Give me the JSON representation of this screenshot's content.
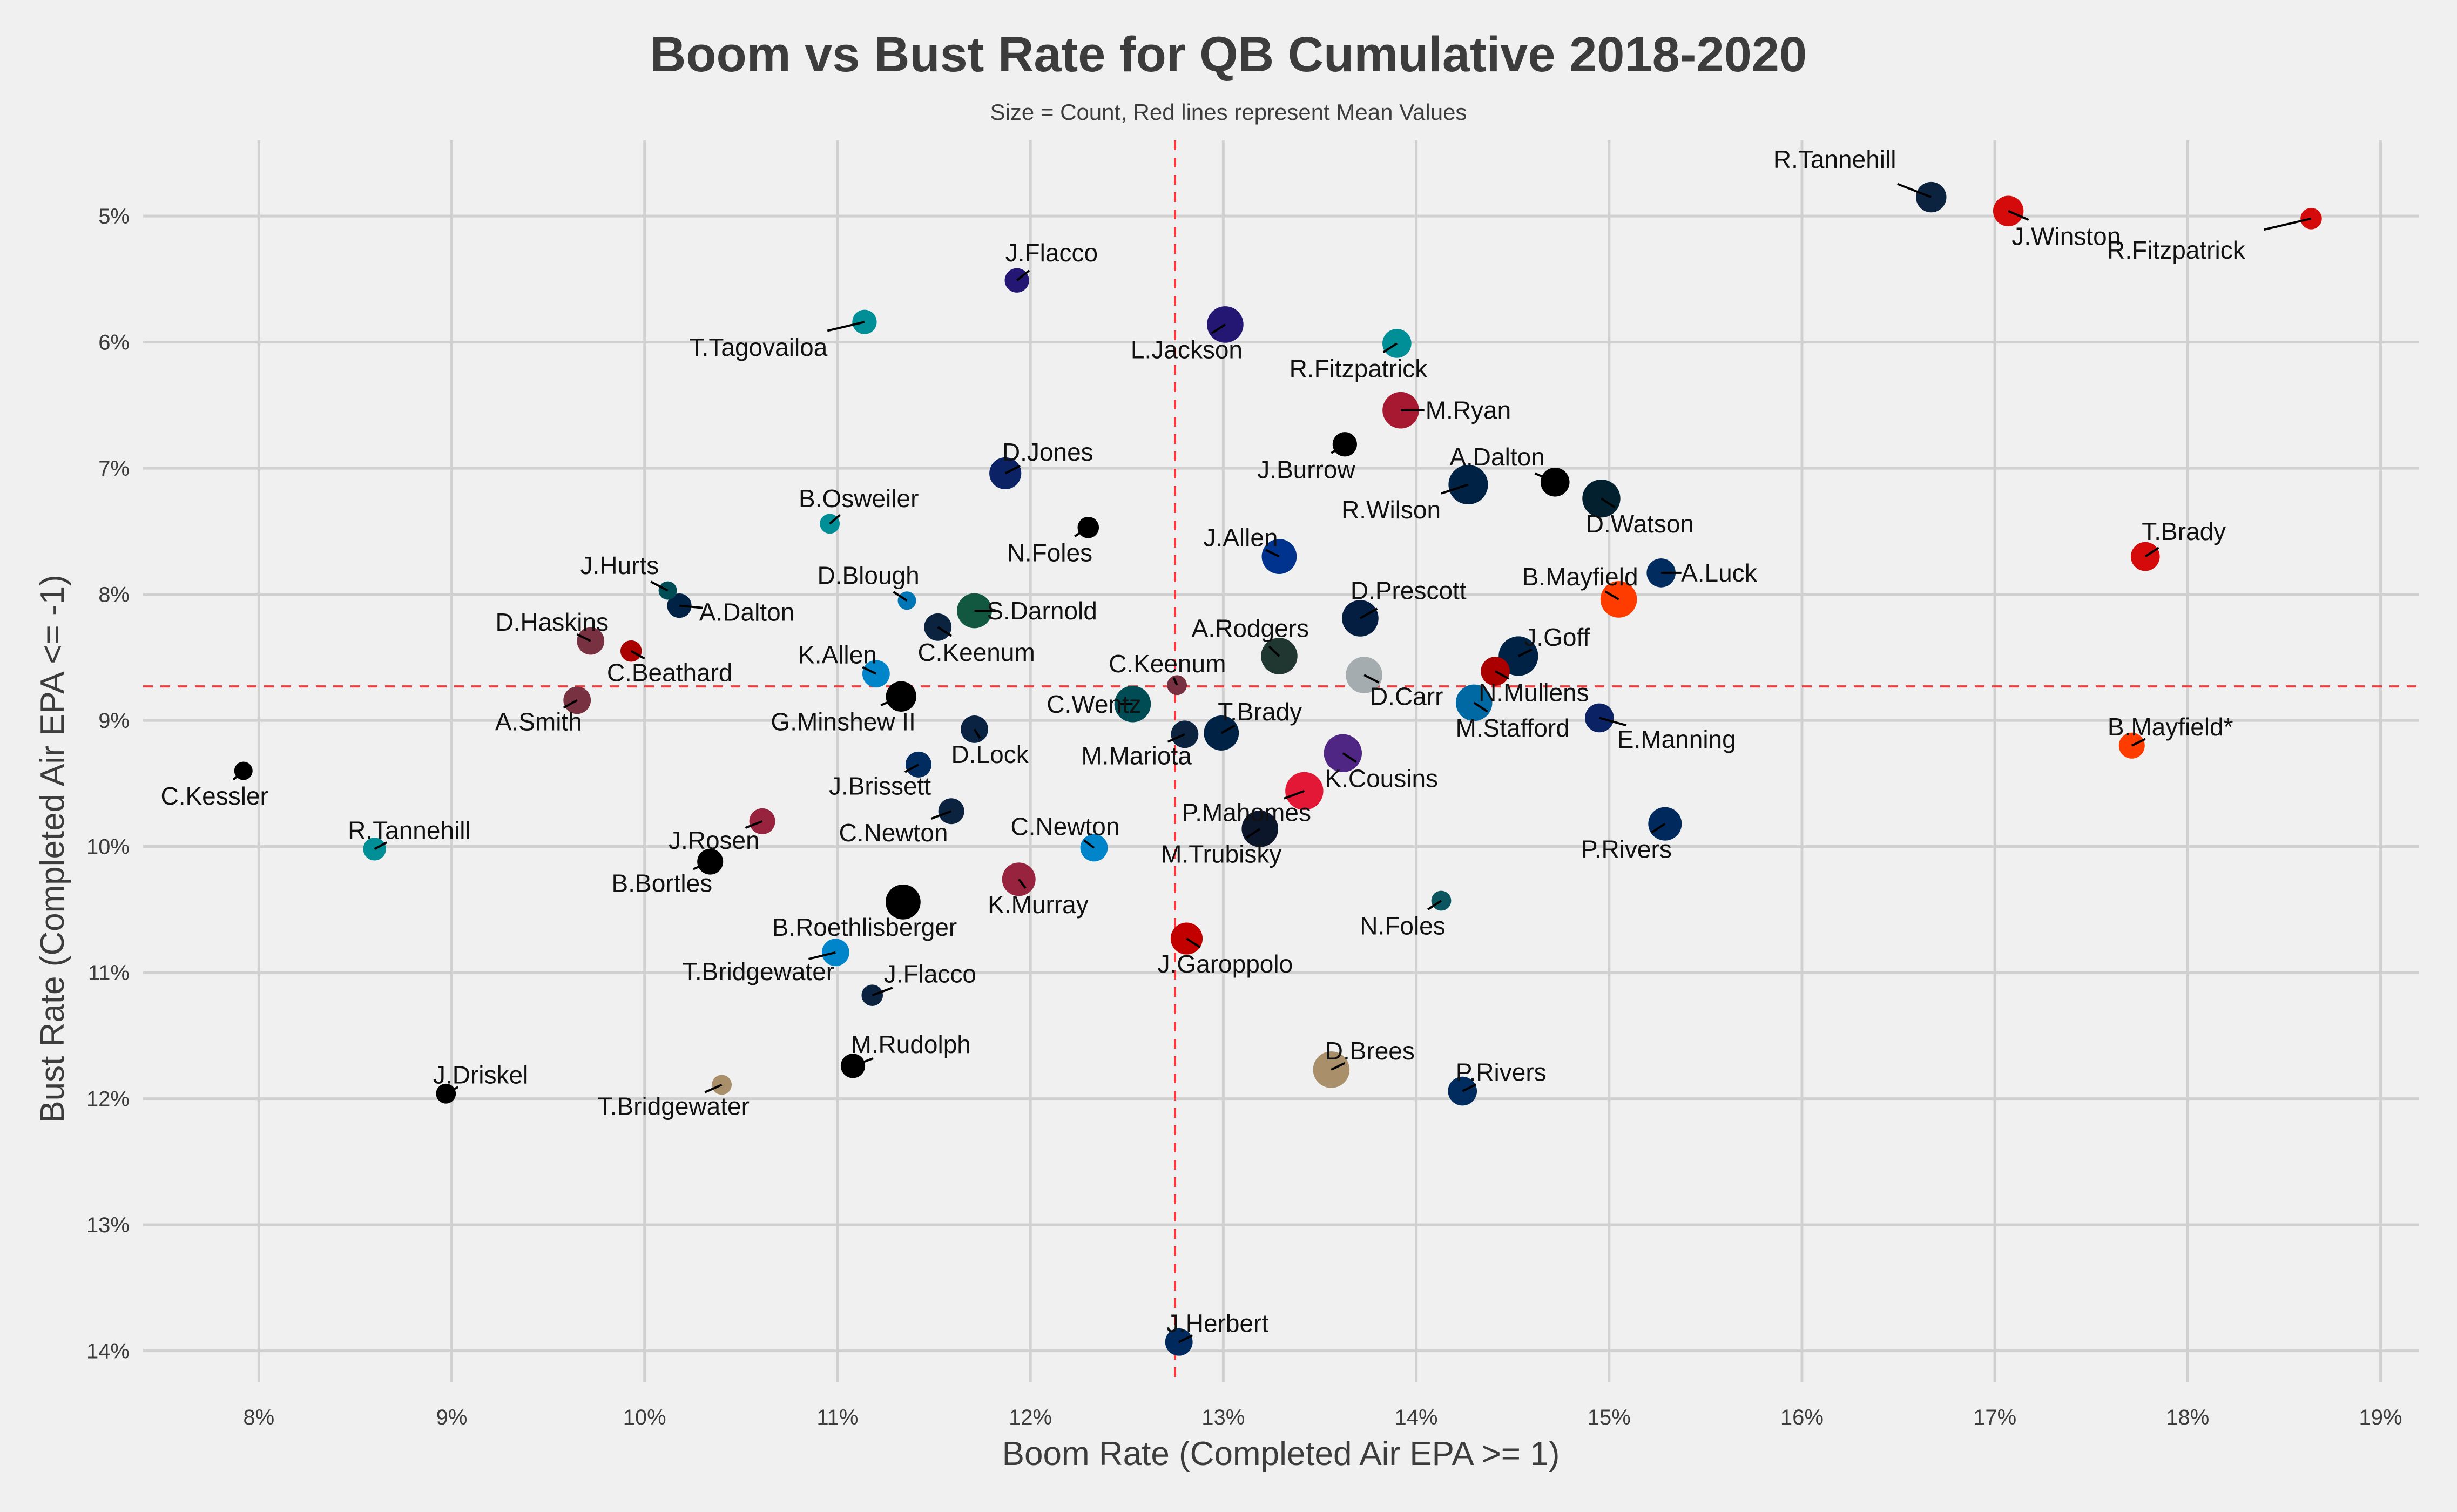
{
  "chart_data": {
    "type": "scatter",
    "title": "Boom vs Bust Rate for QB Cumulative 2018-2020",
    "subtitle": "Size = Count, Red lines represent Mean Values",
    "xlabel": "Boom Rate (Completed Air EPA >= 1)",
    "ylabel": "Bust Rate (Completed Air EPA <= -1)",
    "xlim": [
      7.4,
      19.2
    ],
    "ylim": [
      14.25,
      4.4
    ],
    "y_inverted": true,
    "x_ticks": [
      8,
      9,
      10,
      11,
      12,
      13,
      14,
      15,
      16,
      17,
      18,
      19
    ],
    "y_ticks": [
      5,
      6,
      7,
      8,
      9,
      10,
      11,
      12,
      13,
      14
    ],
    "tick_suffix": "%",
    "grid": true,
    "mean_lines": {
      "x": 12.75,
      "y": 8.73,
      "color": "#f03c3c"
    },
    "points": [
      {
        "name": "R.Tannehill",
        "x": 16.67,
        "y": 4.85,
        "size": 0.65,
        "color": "#0c2340",
        "lx": -0.5,
        "ly": -0.3
      },
      {
        "name": "J.Winston",
        "x": 17.07,
        "y": 4.96,
        "size": 0.65,
        "color": "#d50a0a",
        "lx": 0.3,
        "ly": 0.2
      },
      {
        "name": "R.Fitzpatrick",
        "x": 18.64,
        "y": 5.02,
        "size": 0.35,
        "color": "#d50a0a",
        "lx": -0.7,
        "ly": 0.25
      },
      {
        "name": "J.Flacco",
        "x": 11.93,
        "y": 5.51,
        "size": 0.45,
        "color": "#241773",
        "lx": 0.18,
        "ly": -0.22
      },
      {
        "name": "T.Tagovailoa",
        "x": 11.14,
        "y": 5.84,
        "size": 0.45,
        "color": "#008e97",
        "lx": -0.55,
        "ly": 0.2
      },
      {
        "name": "L.Jackson",
        "x": 13.01,
        "y": 5.86,
        "size": 0.85,
        "color": "#241773",
        "lx": -0.2,
        "ly": 0.2
      },
      {
        "name": "R.Fitzpatrick",
        "x": 13.9,
        "y": 6.01,
        "size": 0.6,
        "color": "#008e97",
        "lx": -0.2,
        "ly": 0.2
      },
      {
        "name": "M.Ryan",
        "x": 13.92,
        "y": 6.54,
        "size": 0.85,
        "color": "#a71930",
        "lx": 0.35,
        "ly": 0.0
      },
      {
        "name": "J.Burrow",
        "x": 13.63,
        "y": 6.81,
        "size": 0.45,
        "color": "#000000",
        "lx": -0.2,
        "ly": 0.2
      },
      {
        "name": "D.Jones",
        "x": 11.87,
        "y": 7.04,
        "size": 0.7,
        "color": "#0b2265",
        "lx": 0.22,
        "ly": -0.17
      },
      {
        "name": "A.Dalton",
        "x": 14.72,
        "y": 7.11,
        "size": 0.6,
        "color": "#000000",
        "lx": -0.3,
        "ly": -0.2
      },
      {
        "name": "R.Wilson",
        "x": 14.27,
        "y": 7.13,
        "size": 0.95,
        "color": "#002244",
        "lx": -0.4,
        "ly": 0.2
      },
      {
        "name": "D.Watson",
        "x": 14.96,
        "y": 7.24,
        "size": 0.9,
        "color": "#03202f",
        "lx": 0.2,
        "ly": 0.2
      },
      {
        "name": "B.Osweiler",
        "x": 10.96,
        "y": 7.44,
        "size": 0.3,
        "color": "#008e97",
        "lx": 0.15,
        "ly": -0.2
      },
      {
        "name": "N.Foles",
        "x": 12.3,
        "y": 7.47,
        "size": 0.35,
        "color": "#000000",
        "lx": -0.2,
        "ly": 0.2
      },
      {
        "name": "J.Allen",
        "x": 13.29,
        "y": 7.7,
        "size": 0.8,
        "color": "#00338d",
        "lx": -0.2,
        "ly": -0.15
      },
      {
        "name": "T.Brady",
        "x": 17.78,
        "y": 7.7,
        "size": 0.6,
        "color": "#d50a0a",
        "lx": 0.2,
        "ly": -0.2
      },
      {
        "name": "A.Luck",
        "x": 15.27,
        "y": 7.83,
        "size": 0.6,
        "color": "#002c5f",
        "lx": 0.3,
        "ly": 0.0
      },
      {
        "name": "J.Hurts",
        "x": 10.12,
        "y": 7.97,
        "size": 0.25,
        "color": "#004c54",
        "lx": -0.25,
        "ly": -0.2
      },
      {
        "name": "B.Mayfield",
        "x": 15.05,
        "y": 8.04,
        "size": 0.85,
        "color": "#ff3c00",
        "lx": -0.2,
        "ly": -0.18
      },
      {
        "name": "D.Blough",
        "x": 11.36,
        "y": 8.05,
        "size": 0.25,
        "color": "#0076b6",
        "lx": -0.2,
        "ly": -0.2
      },
      {
        "name": "A.Dalton",
        "x": 10.18,
        "y": 8.09,
        "size": 0.45,
        "color": "#002244",
        "lx": 0.35,
        "ly": 0.05
      },
      {
        "name": "S.Darnold",
        "x": 11.71,
        "y": 8.13,
        "size": 0.8,
        "color": "#125740",
        "lx": 0.35,
        "ly": 0.0
      },
      {
        "name": "D.Prescott",
        "x": 13.71,
        "y": 8.19,
        "size": 0.85,
        "color": "#041e42",
        "lx": 0.25,
        "ly": -0.22
      },
      {
        "name": "C.Keenum",
        "x": 11.52,
        "y": 8.26,
        "size": 0.55,
        "color": "#0c2340",
        "lx": 0.2,
        "ly": 0.2
      },
      {
        "name": "D.Haskins",
        "x": 9.72,
        "y": 8.37,
        "size": 0.55,
        "color": "#773141",
        "lx": -0.2,
        "ly": -0.15
      },
      {
        "name": "C.Beathard",
        "x": 9.93,
        "y": 8.45,
        "size": 0.35,
        "color": "#aa0000",
        "lx": 0.2,
        "ly": 0.17
      },
      {
        "name": "A.Rodgers",
        "x": 13.29,
        "y": 8.49,
        "size": 0.85,
        "color": "#203731",
        "lx": -0.15,
        "ly": -0.22
      },
      {
        "name": "J.Goff",
        "x": 14.53,
        "y": 8.49,
        "size": 0.95,
        "color": "#002244",
        "lx": 0.2,
        "ly": -0.15
      },
      {
        "name": "K.Allen",
        "x": 11.2,
        "y": 8.63,
        "size": 0.55,
        "color": "#0085ca",
        "lx": -0.2,
        "ly": -0.15
      },
      {
        "name": "N.Mullens",
        "x": 14.41,
        "y": 8.61,
        "size": 0.6,
        "color": "#aa0000",
        "lx": 0.2,
        "ly": 0.17
      },
      {
        "name": "D.Carr",
        "x": 13.73,
        "y": 8.64,
        "size": 0.85,
        "color": "#a5acaf",
        "lx": 0.22,
        "ly": 0.17
      },
      {
        "name": "C.Keenum",
        "x": 12.76,
        "y": 8.72,
        "size": 0.3,
        "color": "#773141",
        "lx": -0.05,
        "ly": -0.17
      },
      {
        "name": "A.Smith",
        "x": 9.65,
        "y": 8.84,
        "size": 0.55,
        "color": "#773141",
        "lx": -0.2,
        "ly": 0.17
      },
      {
        "name": "G.Minshew II",
        "x": 11.33,
        "y": 8.81,
        "size": 0.65,
        "color": "#000000",
        "lx": -0.3,
        "ly": 0.2
      },
      {
        "name": "M.Stafford",
        "x": 14.3,
        "y": 8.86,
        "size": 0.85,
        "color": "#0069a3",
        "lx": 0.2,
        "ly": 0.2
      },
      {
        "name": "C.Wentz",
        "x": 12.53,
        "y": 8.87,
        "size": 0.85,
        "color": "#004c54",
        "lx": -0.2,
        "ly": 0.0
      },
      {
        "name": "E.Manning",
        "x": 14.95,
        "y": 8.98,
        "size": 0.6,
        "color": "#0b2265",
        "lx": 0.4,
        "ly": 0.17
      },
      {
        "name": "T.Brady",
        "x": 12.99,
        "y": 9.1,
        "size": 0.8,
        "color": "#002244",
        "lx": 0.2,
        "ly": -0.17
      },
      {
        "name": "M.Mariota",
        "x": 12.8,
        "y": 9.11,
        "size": 0.55,
        "color": "#0c2340",
        "lx": -0.25,
        "ly": 0.17
      },
      {
        "name": "D.Lock",
        "x": 11.71,
        "y": 9.07,
        "size": 0.55,
        "color": "#0a2343",
        "lx": 0.08,
        "ly": 0.2
      },
      {
        "name": "B.Mayfield*",
        "x": 17.71,
        "y": 9.2,
        "size": 0.5,
        "color": "#ff3c00",
        "lx": 0.2,
        "ly": -0.15
      },
      {
        "name": "K.Cousins",
        "x": 13.62,
        "y": 9.26,
        "size": 0.9,
        "color": "#4f2683",
        "lx": 0.2,
        "ly": 0.2
      },
      {
        "name": "C.Kessler",
        "x": 7.92,
        "y": 9.4,
        "size": 0.25,
        "color": "#000000",
        "lx": -0.15,
        "ly": 0.2
      },
      {
        "name": "J.Brissett",
        "x": 11.42,
        "y": 9.35,
        "size": 0.5,
        "color": "#002c5f",
        "lx": -0.2,
        "ly": 0.17
      },
      {
        "name": "P.Mahomes",
        "x": 13.42,
        "y": 9.56,
        "size": 0.9,
        "color": "#e31837",
        "lx": -0.3,
        "ly": 0.17
      },
      {
        "name": "C.Newton",
        "x": 11.59,
        "y": 9.72,
        "size": 0.5,
        "color": "#0c2340",
        "lx": -0.3,
        "ly": 0.17
      },
      {
        "name": "J.Rosen",
        "x": 10.61,
        "y": 9.8,
        "size": 0.5,
        "color": "#97233f",
        "lx": -0.25,
        "ly": 0.15
      },
      {
        "name": "M.Trubisky",
        "x": 13.19,
        "y": 9.86,
        "size": 0.85,
        "color": "#0b162a",
        "lx": -0.2,
        "ly": 0.2
      },
      {
        "name": "P.Rivers",
        "x": 15.29,
        "y": 9.82,
        "size": 0.75,
        "color": "#002a5e",
        "lx": -0.2,
        "ly": 0.2
      },
      {
        "name": "C.Newton",
        "x": 12.33,
        "y": 10.01,
        "size": 0.55,
        "color": "#0085ca",
        "lx": -0.15,
        "ly": -0.17
      },
      {
        "name": "R.Tannehill",
        "x": 8.6,
        "y": 10.02,
        "size": 0.4,
        "color": "#008e97",
        "lx": 0.18,
        "ly": -0.15
      },
      {
        "name": "B.Bortles",
        "x": 10.34,
        "y": 10.12,
        "size": 0.5,
        "color": "#000000",
        "lx": -0.25,
        "ly": 0.17
      },
      {
        "name": "K.Murray",
        "x": 11.94,
        "y": 10.26,
        "size": 0.75,
        "color": "#97233f",
        "lx": 0.1,
        "ly": 0.2
      },
      {
        "name": "B.Roethlisberger",
        "x": 11.34,
        "y": 10.44,
        "size": 0.8,
        "color": "#000000",
        "lx": -0.2,
        "ly": 0.2
      },
      {
        "name": "N.Foles",
        "x": 14.13,
        "y": 10.43,
        "size": 0.3,
        "color": "#0b5560",
        "lx": -0.2,
        "ly": 0.2
      },
      {
        "name": "J.Garoppolo",
        "x": 12.81,
        "y": 10.73,
        "size": 0.7,
        "color": "#c20000",
        "lx": 0.2,
        "ly": 0.2
      },
      {
        "name": "T.Bridgewater",
        "x": 10.99,
        "y": 10.84,
        "size": 0.55,
        "color": "#0085ca",
        "lx": -0.4,
        "ly": 0.15
      },
      {
        "name": "J.Flacco",
        "x": 11.18,
        "y": 11.18,
        "size": 0.35,
        "color": "#0c2340",
        "lx": 0.3,
        "ly": -0.17
      },
      {
        "name": "M.Rudolph",
        "x": 11.08,
        "y": 11.74,
        "size": 0.45,
        "color": "#000000",
        "lx": 0.3,
        "ly": -0.17
      },
      {
        "name": "D.Brees",
        "x": 13.56,
        "y": 11.77,
        "size": 0.85,
        "color": "#a9906a",
        "lx": 0.2,
        "ly": -0.15
      },
      {
        "name": "T.Bridgewater",
        "x": 10.4,
        "y": 11.89,
        "size": 0.3,
        "color": "#a9906a",
        "lx": -0.25,
        "ly": 0.17
      },
      {
        "name": "P.Rivers",
        "x": 14.24,
        "y": 11.94,
        "size": 0.6,
        "color": "#002c5f",
        "lx": 0.2,
        "ly": -0.15
      },
      {
        "name": "J.Driskel",
        "x": 8.97,
        "y": 11.96,
        "size": 0.3,
        "color": "#000000",
        "lx": 0.18,
        "ly": -0.15
      },
      {
        "name": "J.Herbert",
        "x": 12.77,
        "y": 13.93,
        "size": 0.55,
        "color": "#002a5e",
        "lx": 0.2,
        "ly": -0.15
      }
    ]
  }
}
